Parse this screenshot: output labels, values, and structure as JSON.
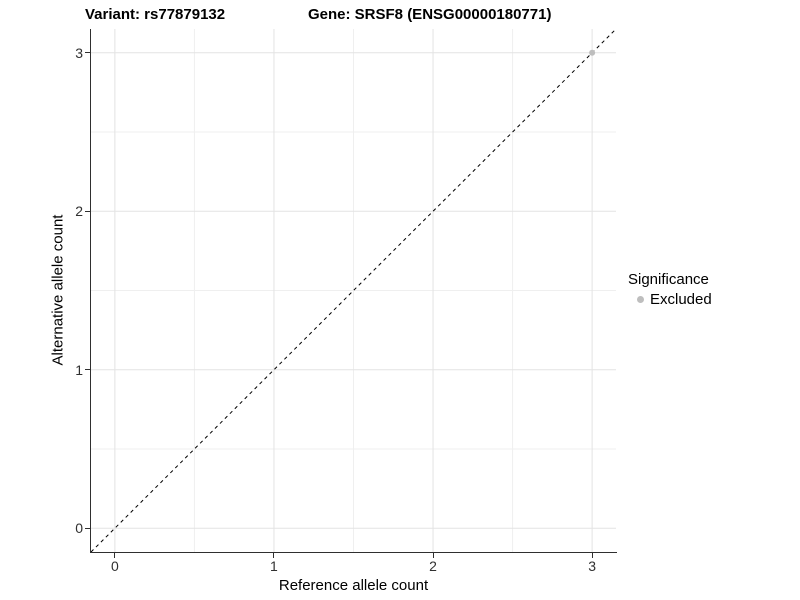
{
  "plot_title": {
    "variant": "Variant: rs77879132",
    "gene": "Gene: SRSF8 (ENSG00000180771)"
  },
  "axes": {
    "x": {
      "label": "Reference allele count",
      "tick_labels": [
        "0",
        "1",
        "2",
        "3"
      ]
    },
    "y": {
      "label": "Alternative allele count",
      "tick_labels": [
        "0",
        "1",
        "2",
        "3"
      ]
    }
  },
  "legend": {
    "title": "Significance",
    "items": [
      {
        "label": "Excluded",
        "color": "#bebebe"
      }
    ]
  },
  "chart_data": {
    "type": "scatter",
    "title": "Variant: rs77879132   Gene: SRSF8 (ENSG00000180771)",
    "xlabel": "Reference allele count",
    "ylabel": "Alternative allele count",
    "xlim": [
      -0.15,
      3.15
    ],
    "ylim": [
      -0.15,
      3.15
    ],
    "x_ticks": [
      0,
      1,
      2,
      3
    ],
    "y_ticks": [
      0,
      1,
      2,
      3
    ],
    "grid": "on",
    "legend_position": "right",
    "series": [
      {
        "name": "Excluded",
        "color": "#bebebe",
        "points": [
          [
            3,
            3
          ]
        ]
      }
    ],
    "reference_line": {
      "type": "identity y=x",
      "style": "dashed",
      "color": "#000000",
      "from": [
        -0.15,
        -0.15
      ],
      "to": [
        3.15,
        3.15
      ]
    }
  },
  "colors": {
    "background": "#ffffff",
    "grid_major": "#e3e3e3",
    "grid_minor": "#efefef",
    "axis_line": "#2f2f2f",
    "tick_text": "#303030",
    "text": "#000000",
    "excluded_point": "#bebebe"
  }
}
